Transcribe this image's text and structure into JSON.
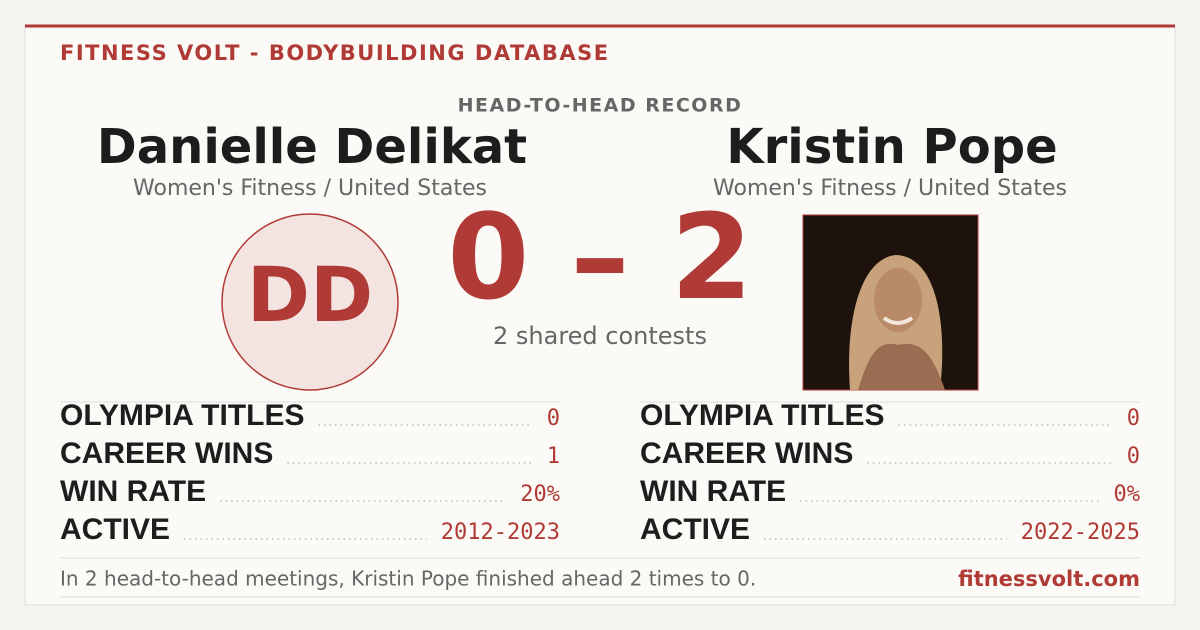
{
  "header": {
    "brand": "FITNESS VOLT - BODYBUILDING DATABASE",
    "subtitle": "HEAD-TO-HEAD RECORD"
  },
  "athletes": [
    {
      "name": "Danielle Delikat",
      "division": "Women's Fitness / United States",
      "initials": "DD",
      "stats": [
        {
          "label": "OLYMPIA TITLES",
          "value": "0"
        },
        {
          "label": "CAREER WINS",
          "value": "1"
        },
        {
          "label": "WIN RATE",
          "value": "20%"
        },
        {
          "label": "ACTIVE",
          "value": "2012-2023"
        }
      ]
    },
    {
      "name": "Kristin Pope",
      "division": "Women's Fitness / United States",
      "stats": [
        {
          "label": "OLYMPIA TITLES",
          "value": "0"
        },
        {
          "label": "CAREER WINS",
          "value": "0"
        },
        {
          "label": "WIN RATE",
          "value": "0%"
        },
        {
          "label": "ACTIVE",
          "value": "2022-2025"
        }
      ]
    }
  ],
  "score": {
    "left": "0",
    "separator": "–",
    "right": "2"
  },
  "shared": "2 shared contests",
  "footer": {
    "summary": "In 2 head-to-head meetings, Kristin Pope finished ahead 2 times to 0.",
    "site": "fitnessvolt.com"
  }
}
